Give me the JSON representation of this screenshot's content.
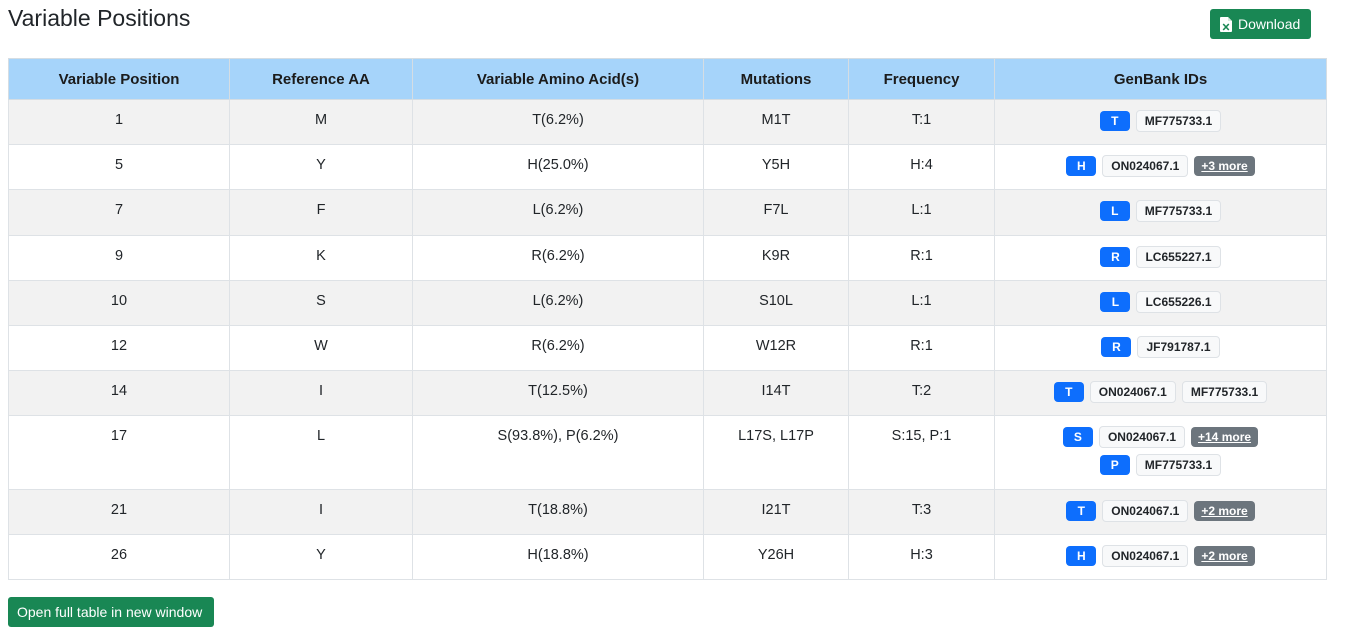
{
  "header": {
    "title": "Variable Positions",
    "download_label": "Download"
  },
  "colors": {
    "header_bg": "#a6d4fa",
    "green_button": "#198754",
    "aa_badge": "#0d6efd",
    "more_badge": "#6c757d"
  },
  "table": {
    "columns": [
      "Variable Position",
      "Reference AA",
      "Variable Amino Acid(s)",
      "Mutations",
      "Frequency",
      "GenBank IDs"
    ],
    "rows": [
      {
        "pos": "1",
        "ref": "M",
        "var": "T(6.2%)",
        "mut": "M1T",
        "freq": "T:1",
        "genbank": [
          {
            "aa": "T",
            "ids": [
              "MF775733.1"
            ],
            "more": ""
          }
        ]
      },
      {
        "pos": "5",
        "ref": "Y",
        "var": "H(25.0%)",
        "mut": "Y5H",
        "freq": "H:4",
        "genbank": [
          {
            "aa": "H",
            "ids": [
              "ON024067.1"
            ],
            "more": "+3 more"
          }
        ]
      },
      {
        "pos": "7",
        "ref": "F",
        "var": "L(6.2%)",
        "mut": "F7L",
        "freq": "L:1",
        "genbank": [
          {
            "aa": "L",
            "ids": [
              "MF775733.1"
            ],
            "more": ""
          }
        ]
      },
      {
        "pos": "9",
        "ref": "K",
        "var": "R(6.2%)",
        "mut": "K9R",
        "freq": "R:1",
        "genbank": [
          {
            "aa": "R",
            "ids": [
              "LC655227.1"
            ],
            "more": ""
          }
        ]
      },
      {
        "pos": "10",
        "ref": "S",
        "var": "L(6.2%)",
        "mut": "S10L",
        "freq": "L:1",
        "genbank": [
          {
            "aa": "L",
            "ids": [
              "LC655226.1"
            ],
            "more": ""
          }
        ]
      },
      {
        "pos": "12",
        "ref": "W",
        "var": "R(6.2%)",
        "mut": "W12R",
        "freq": "R:1",
        "genbank": [
          {
            "aa": "R",
            "ids": [
              "JF791787.1"
            ],
            "more": ""
          }
        ]
      },
      {
        "pos": "14",
        "ref": "I",
        "var": "T(12.5%)",
        "mut": "I14T",
        "freq": "T:2",
        "genbank": [
          {
            "aa": "T",
            "ids": [
              "ON024067.1",
              "MF775733.1"
            ],
            "more": ""
          }
        ]
      },
      {
        "pos": "17",
        "ref": "L",
        "var": "S(93.8%), P(6.2%)",
        "mut": "L17S, L17P",
        "freq": "S:15, P:1",
        "genbank": [
          {
            "aa": "S",
            "ids": [
              "ON024067.1"
            ],
            "more": "+14 more"
          },
          {
            "aa": "P",
            "ids": [
              "MF775733.1"
            ],
            "more": ""
          }
        ]
      },
      {
        "pos": "21",
        "ref": "I",
        "var": "T(18.8%)",
        "mut": "I21T",
        "freq": "T:3",
        "genbank": [
          {
            "aa": "T",
            "ids": [
              "ON024067.1"
            ],
            "more": "+2 more"
          }
        ]
      },
      {
        "pos": "26",
        "ref": "Y",
        "var": "H(18.8%)",
        "mut": "Y26H",
        "freq": "H:3",
        "genbank": [
          {
            "aa": "H",
            "ids": [
              "ON024067.1"
            ],
            "more": "+2 more"
          }
        ]
      }
    ]
  },
  "footer": {
    "open_full_label": "Open full table in new window"
  }
}
